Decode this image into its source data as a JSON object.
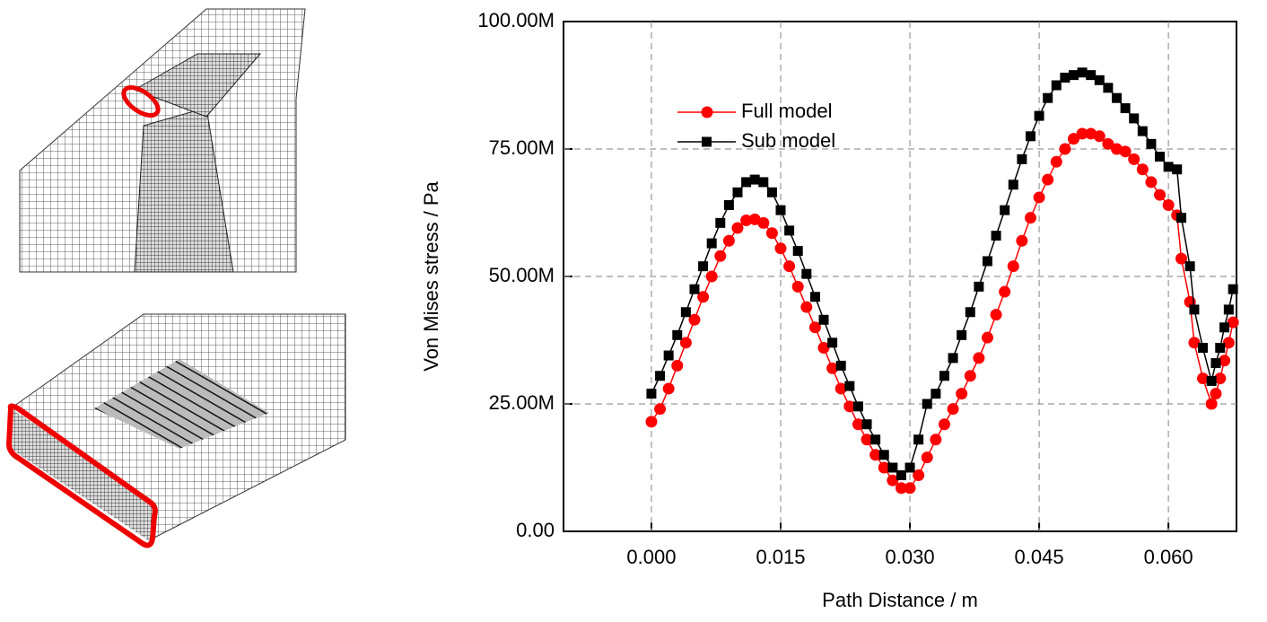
{
  "chart_data": {
    "type": "line",
    "x_label": "Path Distance / m",
    "y_label": "Von Mises stress / Pa",
    "x": [
      0,
      0.001,
      0.002,
      0.003,
      0.004,
      0.005,
      0.006,
      0.007,
      0.008,
      0.009,
      0.01,
      0.011,
      0.012,
      0.013,
      0.014,
      0.015,
      0.016,
      0.017,
      0.018,
      0.019,
      0.02,
      0.021,
      0.022,
      0.023,
      0.024,
      0.025,
      0.026,
      0.027,
      0.028,
      0.029,
      0.03,
      0.031,
      0.032,
      0.033,
      0.034,
      0.035,
      0.036,
      0.037,
      0.038,
      0.039,
      0.04,
      0.041,
      0.042,
      0.043,
      0.044,
      0.045,
      0.046,
      0.047,
      0.048,
      0.049,
      0.05,
      0.051,
      0.052,
      0.053,
      0.054,
      0.055,
      0.056,
      0.057,
      0.058,
      0.059,
      0.06,
      0.061,
      0.0615,
      0.0625,
      0.063,
      0.064,
      0.065,
      0.0655,
      0.066,
      0.0665,
      0.067,
      0.0675
    ],
    "series": [
      {
        "name": "Full model",
        "color": "#ff0000",
        "marker": "circle",
        "values": [
          21500000.0,
          24000000.0,
          28000000.0,
          32500000.0,
          37000000.0,
          41500000.0,
          46000000.0,
          50000000.0,
          54000000.0,
          57000000.0,
          59500000.0,
          61000000.0,
          61200000.0,
          60500000.0,
          58500000.0,
          55500000.0,
          52000000.0,
          48000000.0,
          44000000.0,
          40000000.0,
          36000000.0,
          32000000.0,
          28000000.0,
          24500000.0,
          21000000.0,
          18000000.0,
          15000000.0,
          12500000.0,
          10000000.0,
          8500000.0,
          8500000.0,
          11000000.0,
          14500000.0,
          18000000.0,
          21000000.0,
          24000000.0,
          27000000.0,
          30500000.0,
          34000000.0,
          38000000.0,
          42500000.0,
          47000000.0,
          52000000.0,
          57000000.0,
          61500000.0,
          65500000.0,
          69000000.0,
          72500000.0,
          75000000.0,
          77000000.0,
          78000000.0,
          78000000.0,
          77500000.0,
          76000000.0,
          75000000.0,
          74500000.0,
          73000000.0,
          71000000.0,
          68500000.0,
          66000000.0,
          64000000.0,
          62000000.0,
          53500000.0,
          45000000.0,
          37000000.0,
          30000000.0,
          25000000.0,
          27000000.0,
          30000000.0,
          33500000.0,
          37000000.0,
          41000000.0
        ]
      },
      {
        "name": "Sub model",
        "color": "#000000",
        "marker": "square",
        "values": [
          27000000.0,
          30500000.0,
          34500000.0,
          38500000.0,
          43000000.0,
          47500000.0,
          52000000.0,
          56500000.0,
          60500000.0,
          64000000.0,
          66500000.0,
          68500000.0,
          69000000.0,
          68500000.0,
          66500000.0,
          63000000.0,
          59000000.0,
          55000000.0,
          50500000.0,
          46000000.0,
          41500000.0,
          37000000.0,
          32500000.0,
          28500000.0,
          24500000.0,
          21000000.0,
          18000000.0,
          15000000.0,
          12500000.0,
          11000000.0,
          12500000.0,
          18000000.0,
          25000000.0,
          27000000.0,
          30500000.0,
          34000000.0,
          38500000.0,
          43000000.0,
          48000000.0,
          53000000.0,
          58000000.0,
          63000000.0,
          68000000.0,
          73000000.0,
          77500000.0,
          81500000.0,
          85000000.0,
          87500000.0,
          89000000.0,
          89500000.0,
          90000000.0,
          89500000.0,
          88500000.0,
          87000000.0,
          85000000.0,
          83000000.0,
          81000000.0,
          78500000.0,
          76000000.0,
          73500000.0,
          71500000.0,
          71000000.0,
          61500000.0,
          52000000.0,
          43500000.0,
          36000000.0,
          29500000.0,
          33000000.0,
          36000000.0,
          40000000.0,
          43500000.0,
          47500000.0
        ]
      }
    ],
    "xlim": [
      -0.0102,
      0.0679
    ],
    "ylim": [
      0,
      100000000.0
    ],
    "xticks": [
      {
        "value": 0,
        "label": "0.000"
      },
      {
        "value": 0.015,
        "label": "0.015"
      },
      {
        "value": 0.03,
        "label": "0.030"
      },
      {
        "value": 0.045,
        "label": "0.045"
      },
      {
        "value": 0.06,
        "label": "0.060"
      }
    ],
    "yticks": [
      {
        "value": 0,
        "label": "0.00"
      },
      {
        "value": 25000000.0,
        "label": "25.00M"
      },
      {
        "value": 50000000.0,
        "label": "50.00M"
      },
      {
        "value": 75000000.0,
        "label": "75.00M"
      },
      {
        "value": 100000000.0,
        "label": "100.00M"
      }
    ],
    "grid": true,
    "legend": "top-left"
  }
}
